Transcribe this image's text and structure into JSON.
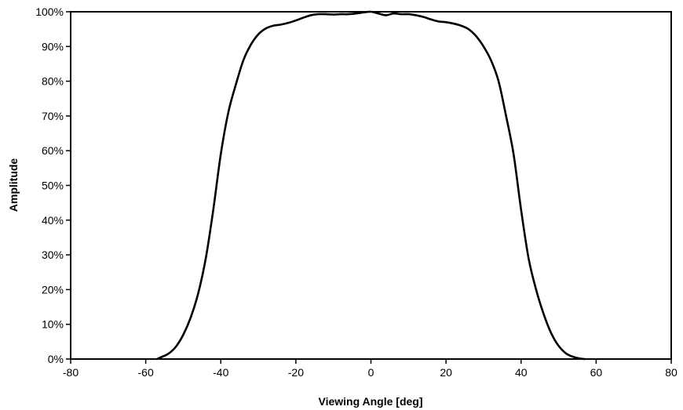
{
  "chart_data": {
    "type": "line",
    "title": "",
    "xlabel": "Viewing Angle [deg]",
    "ylabel": "Amplitude",
    "xlim": [
      -80,
      80
    ],
    "ylim": [
      0,
      1
    ],
    "grid": false,
    "legend": "none",
    "x_ticks": [
      -80,
      -60,
      -40,
      -20,
      0,
      20,
      40,
      60,
      80
    ],
    "y_ticks": [
      0,
      0.1,
      0.2,
      0.3,
      0.4,
      0.5,
      0.6,
      0.7,
      0.8,
      0.9,
      1.0
    ],
    "x_tick_labels": [
      "-80",
      "-60",
      "-40",
      "-20",
      "0",
      "20",
      "40",
      "60",
      "80"
    ],
    "y_tick_labels": [
      "0%",
      "10%",
      "20%",
      "30%",
      "40%",
      "50%",
      "60%",
      "70%",
      "80%",
      "90%",
      "100%"
    ],
    "line_color": "#000000",
    "series": [
      {
        "x": [
          -57,
          -56,
          -54,
          -52,
          -50,
          -48,
          -46,
          -44,
          -42,
          -40,
          -38,
          -36,
          -34,
          -32,
          -30,
          -28,
          -26,
          -24,
          -22,
          -20,
          -18,
          -16,
          -14,
          -12,
          -10,
          -8,
          -6,
          -4,
          -2,
          0,
          2,
          4,
          6,
          8,
          10,
          12,
          14,
          16,
          18,
          20,
          22,
          24,
          26,
          28,
          30,
          32,
          34,
          36,
          38,
          40,
          42,
          44,
          46,
          48,
          50,
          52,
          54,
          56,
          57
        ],
        "y": [
          0.0,
          0.005,
          0.015,
          0.035,
          0.07,
          0.12,
          0.19,
          0.29,
          0.43,
          0.59,
          0.71,
          0.79,
          0.86,
          0.905,
          0.935,
          0.952,
          0.96,
          0.963,
          0.968,
          0.975,
          0.983,
          0.99,
          0.993,
          0.993,
          0.992,
          0.993,
          0.993,
          0.995,
          0.998,
          1.0,
          0.995,
          0.99,
          0.995,
          0.993,
          0.993,
          0.99,
          0.985,
          0.978,
          0.972,
          0.97,
          0.966,
          0.96,
          0.95,
          0.93,
          0.9,
          0.86,
          0.8,
          0.7,
          0.59,
          0.43,
          0.29,
          0.2,
          0.13,
          0.075,
          0.038,
          0.016,
          0.006,
          0.001,
          0.0
        ]
      }
    ]
  }
}
